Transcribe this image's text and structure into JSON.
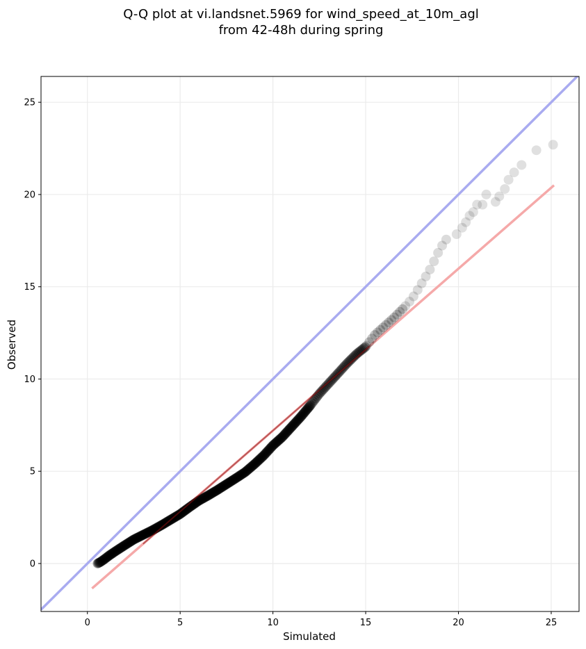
{
  "chart_data": {
    "type": "scatter",
    "title_line1": "Q-Q plot at vi.landsnet.5969 for wind_speed_at_10m_agl",
    "title_line2": "from 42-48h during spring",
    "xlabel": "Simulated",
    "ylabel": "Observed",
    "xlim": [
      -2.5,
      26.5
    ],
    "ylim": [
      -2.6,
      26.4
    ],
    "xticks": [
      0,
      5,
      10,
      15,
      20,
      25
    ],
    "yticks": [
      0,
      5,
      10,
      15,
      20,
      25
    ],
    "grid": true,
    "reference_line": {
      "name": "identity",
      "color": "#a9abf0",
      "from": [
        -2.5,
        -2.5
      ],
      "to": [
        26.5,
        26.5
      ]
    },
    "fit_line": {
      "color": "#f5a9a9",
      "from": [
        0.25,
        -1.35
      ],
      "to": [
        25.15,
        20.5
      ]
    },
    "point_color": "#000000",
    "curve_points": [
      [
        0.55,
        0.0
      ],
      [
        0.7,
        0.08
      ],
      [
        0.9,
        0.22
      ],
      [
        1.2,
        0.45
      ],
      [
        1.6,
        0.72
      ],
      [
        2.0,
        0.98
      ],
      [
        2.5,
        1.3
      ],
      [
        3.0,
        1.55
      ],
      [
        3.5,
        1.8
      ],
      [
        4.0,
        2.08
      ],
      [
        4.5,
        2.38
      ],
      [
        5.0,
        2.68
      ],
      [
        5.5,
        3.05
      ],
      [
        6.0,
        3.4
      ],
      [
        6.5,
        3.68
      ],
      [
        7.0,
        3.98
      ],
      [
        7.5,
        4.3
      ],
      [
        8.0,
        4.62
      ],
      [
        8.5,
        4.95
      ],
      [
        9.0,
        5.38
      ],
      [
        9.5,
        5.85
      ],
      [
        10.0,
        6.4
      ],
      [
        10.5,
        6.85
      ],
      [
        11.0,
        7.4
      ],
      [
        11.5,
        7.95
      ],
      [
        12.0,
        8.55
      ],
      [
        12.5,
        9.2
      ],
      [
        13.0,
        9.75
      ],
      [
        13.5,
        10.3
      ],
      [
        14.0,
        10.85
      ],
      [
        14.5,
        11.35
      ],
      [
        15.0,
        11.75
      ],
      [
        15.5,
        12.4
      ],
      [
        16.0,
        12.85
      ],
      [
        16.5,
        13.3
      ],
      [
        17.0,
        13.8
      ],
      [
        17.5,
        14.35
      ],
      [
        18.0,
        15.15
      ],
      [
        18.5,
        16.0
      ],
      [
        19.0,
        17.05
      ],
      [
        19.4,
        17.65
      ]
    ],
    "tail_points": [
      [
        19.9,
        17.85
      ],
      [
        20.2,
        18.2
      ],
      [
        20.4,
        18.5
      ],
      [
        20.6,
        18.85
      ],
      [
        20.8,
        19.05
      ],
      [
        21.0,
        19.45
      ],
      [
        21.3,
        19.45
      ],
      [
        21.5,
        20.0
      ],
      [
        22.0,
        19.6
      ],
      [
        22.2,
        19.9
      ],
      [
        22.5,
        20.3
      ],
      [
        22.7,
        20.8
      ],
      [
        23.0,
        21.2
      ],
      [
        23.4,
        21.6
      ],
      [
        24.2,
        22.4
      ],
      [
        25.1,
        22.7
      ]
    ]
  }
}
